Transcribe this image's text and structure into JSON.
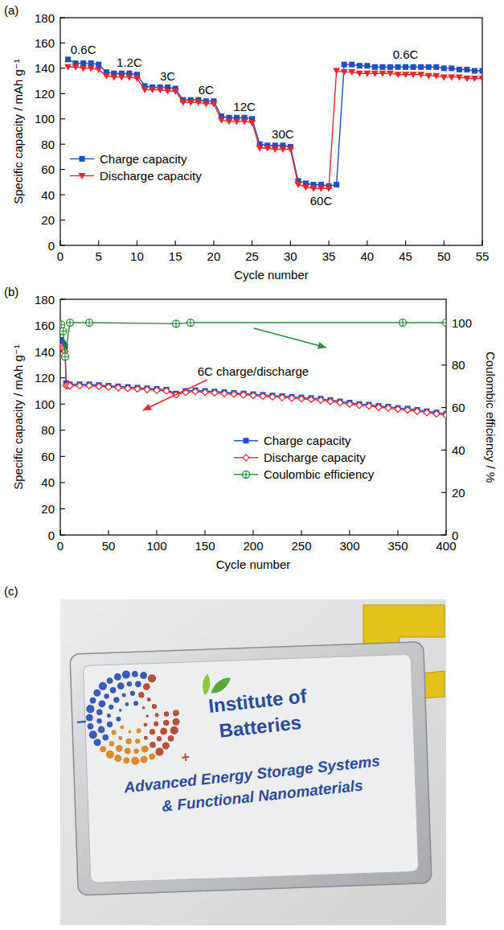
{
  "chart_data": [
    {
      "panel": "(a)",
      "type": "line",
      "x": [
        1,
        2,
        3,
        4,
        5,
        6,
        7,
        8,
        9,
        10,
        11,
        12,
        13,
        14,
        15,
        16,
        17,
        18,
        19,
        20,
        21,
        22,
        23,
        24,
        25,
        26,
        27,
        28,
        29,
        30,
        31,
        32,
        33,
        34,
        35,
        36,
        37,
        38,
        39,
        40,
        41,
        42,
        43,
        44,
        45,
        46,
        47,
        48,
        49,
        50,
        51,
        52,
        53,
        54,
        55
      ],
      "xlim": [
        0,
        55
      ],
      "xticks": [
        0,
        5,
        10,
        15,
        20,
        25,
        30,
        35,
        40,
        45,
        50,
        55
      ],
      "ylim": [
        0,
        180
      ],
      "yticks": [
        0,
        20,
        40,
        60,
        80,
        100,
        120,
        140,
        160,
        180
      ],
      "x_label": "Cycle number",
      "y_label": "Specific capacity / mAh g⁻¹",
      "legend": "left",
      "series": [
        {
          "name": "Charge capacity",
          "color": "#1f4fc4",
          "marker": "square",
          "values": [
            147,
            144,
            144,
            144,
            143,
            137,
            136,
            136,
            136,
            135,
            126,
            125,
            125,
            125,
            124,
            115,
            115,
            115,
            114,
            114,
            102,
            101,
            101,
            101,
            100,
            80,
            79,
            79,
            79,
            78,
            51,
            49,
            48,
            48,
            47,
            48,
            143,
            143,
            142,
            142,
            141,
            141,
            141,
            141,
            141,
            141,
            141,
            141,
            141,
            140,
            140,
            139,
            139,
            138,
            138
          ]
        },
        {
          "name": "Discharge capacity",
          "color": "#e8262d",
          "marker": "triangle-down",
          "values": [
            141,
            141,
            140,
            140,
            139,
            134,
            133,
            133,
            133,
            132,
            123,
            123,
            123,
            122,
            122,
            113,
            113,
            113,
            112,
            112,
            99,
            98,
            98,
            98,
            97,
            77,
            77,
            76,
            76,
            76,
            48,
            46,
            45,
            45,
            45,
            138,
            137,
            137,
            136,
            136,
            136,
            136,
            136,
            135,
            135,
            135,
            135,
            134,
            134,
            133,
            133,
            133,
            132,
            132,
            132
          ]
        }
      ],
      "annotations": [
        {
          "text": "0.6C",
          "x": 3,
          "y": 155
        },
        {
          "text": "1.2C",
          "x": 9,
          "y": 145
        },
        {
          "text": "3C",
          "x": 14,
          "y": 134
        },
        {
          "text": "6C",
          "x": 19,
          "y": 123
        },
        {
          "text": "12C",
          "x": 24,
          "y": 110
        },
        {
          "text": "30C",
          "x": 29,
          "y": 88
        },
        {
          "text": "60C",
          "x": 34,
          "y": 35
        },
        {
          "text": "0.6C",
          "x": 45,
          "y": 151
        }
      ]
    },
    {
      "panel": "(b)",
      "type": "line",
      "x": [
        1,
        2,
        3,
        4,
        5,
        6,
        8,
        10,
        20,
        30,
        40,
        50,
        60,
        70,
        80,
        90,
        100,
        110,
        120,
        130,
        140,
        150,
        160,
        170,
        180,
        190,
        200,
        210,
        220,
        230,
        240,
        250,
        260,
        270,
        280,
        290,
        300,
        310,
        320,
        330,
        340,
        350,
        360,
        370,
        380,
        390,
        400
      ],
      "xlim": [
        0,
        400
      ],
      "xticks": [
        0,
        50,
        100,
        150,
        200,
        250,
        300,
        350,
        400
      ],
      "ylim": [
        0,
        180
      ],
      "yticks": [
        0,
        20,
        40,
        60,
        80,
        100,
        120,
        140,
        160,
        180
      ],
      "y2lim": [
        0,
        111
      ],
      "y2ticks": [
        0,
        20,
        40,
        60,
        80,
        100
      ],
      "x_label": "Cycle number",
      "y_label": "Specific capacity / mAh g⁻¹",
      "y2_label": "Coulombic efficiency / %",
      "legend": "right",
      "series": [
        {
          "name": "Charge capacity",
          "color": "#1f4fc4",
          "marker": "square",
          "values": [
            149,
            147,
            146,
            145,
            144,
            116,
            115,
            115,
            115,
            115,
            114.5,
            114,
            113.5,
            113,
            112.5,
            112,
            111.5,
            111,
            108,
            110,
            110.5,
            110,
            109.5,
            109,
            108.5,
            108,
            107.5,
            107,
            106.5,
            106,
            105.5,
            105,
            104.5,
            104,
            103,
            102,
            101,
            100,
            99.5,
            98.5,
            98,
            97,
            96.5,
            95.5,
            94.5,
            93.5,
            92.5
          ]
        },
        {
          "name": "Discharge capacity",
          "color": "#e8262d",
          "marker": "diamond",
          "values": [
            144,
            143,
            142,
            141,
            140,
            114,
            114,
            114,
            114,
            114,
            113.5,
            113,
            112.5,
            112,
            111.5,
            111,
            110.5,
            110,
            107,
            109,
            109.5,
            109,
            108.5,
            108,
            107.5,
            107,
            106.5,
            106,
            105.5,
            105,
            104.5,
            104,
            103.5,
            103,
            102,
            101,
            100,
            99,
            98.5,
            97.5,
            97,
            96,
            95.5,
            94.5,
            93.5,
            92.5,
            91.5
          ]
        },
        {
          "name": "Coulombic efficiency",
          "color": "#2e8b3a",
          "marker": "circle-cross",
          "axis": "y2",
          "x": [
            1,
            3,
            5,
            10,
            30,
            120,
            135,
            355,
            400
          ],
          "values": [
            99,
            96,
            84,
            100,
            100,
            99.5,
            100,
            100,
            100
          ]
        }
      ],
      "annotations": [
        {
          "text": "6C charge/discharge",
          "x": 200,
          "y": 125
        }
      ]
    }
  ],
  "photo": {
    "panel": "(c)",
    "logo_signs": [
      "−",
      "+"
    ],
    "texts": [
      "Institute of",
      "Batteries",
      "Advanced Energy Storage Systems",
      "& Functional Nanomaterials"
    ]
  }
}
